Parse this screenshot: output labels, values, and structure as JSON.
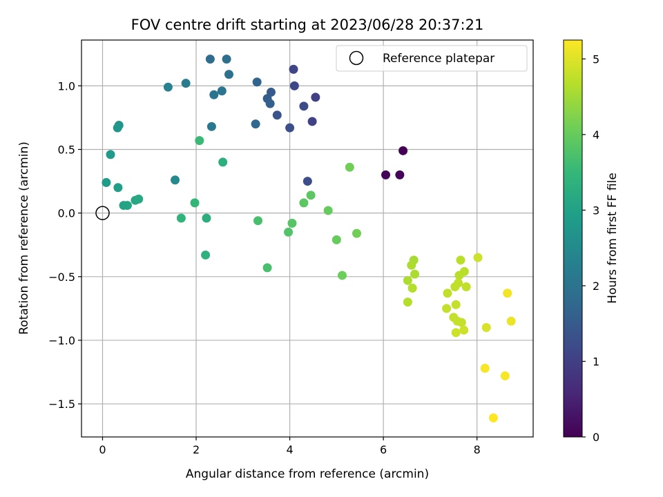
{
  "chart_data": {
    "type": "scatter",
    "title": "FOV centre drift starting at 2023/06/28 20:37:21",
    "xlabel": "Angular distance from reference (arcmin)",
    "ylabel": "Rotation from reference (arcmin)",
    "xlim": [
      -0.45,
      9.2
    ],
    "ylim": [
      -1.76,
      1.36
    ],
    "xticks": [
      0,
      2,
      4,
      6,
      8
    ],
    "xtick_labels": [
      "0",
      "2",
      "4",
      "6",
      "8"
    ],
    "yticks": [
      -1.5,
      -1.0,
      -0.5,
      0.0,
      0.5,
      1.0
    ],
    "ytick_labels": [
      "−1.5",
      "−1.0",
      "−0.5",
      "0.0",
      "0.5",
      "1.0"
    ],
    "grid": true,
    "legend": {
      "placement": "top-right",
      "entries": [
        {
          "label": "Reference platepar",
          "marker": "open-circle",
          "x": 0.0,
          "y": 0.0
        }
      ]
    },
    "colorbar": {
      "label": "Hours from first FF file",
      "colormap": "viridis",
      "range": [
        0,
        5.25
      ],
      "ticks": [
        0,
        1,
        2,
        3,
        4,
        5
      ],
      "tick_labels": [
        "0",
        "1",
        "2",
        "3",
        "4",
        "5"
      ]
    },
    "colormap_stops": [
      "#440154",
      "#482878",
      "#3e4989",
      "#31688e",
      "#26828e",
      "#1f9e89",
      "#35b779",
      "#6ece58",
      "#b5de2b",
      "#fde725"
    ],
    "points": [
      {
        "x": 6.42,
        "y": 0.49,
        "c": 0.02
      },
      {
        "x": 6.05,
        "y": 0.3,
        "c": 0.05
      },
      {
        "x": 6.35,
        "y": 0.3,
        "c": 0.08
      },
      {
        "x": 4.55,
        "y": 0.91,
        "c": 1.0
      },
      {
        "x": 4.48,
        "y": 0.72,
        "c": 1.05
      },
      {
        "x": 4.08,
        "y": 1.13,
        "c": 1.1
      },
      {
        "x": 4.1,
        "y": 1.0,
        "c": 1.15
      },
      {
        "x": 4.3,
        "y": 0.84,
        "c": 1.2
      },
      {
        "x": 4.38,
        "y": 0.25,
        "c": 1.25
      },
      {
        "x": 4.0,
        "y": 0.67,
        "c": 1.3
      },
      {
        "x": 3.73,
        "y": 0.77,
        "c": 1.4
      },
      {
        "x": 3.6,
        "y": 0.95,
        "c": 1.5
      },
      {
        "x": 3.52,
        "y": 0.9,
        "c": 1.55
      },
      {
        "x": 3.58,
        "y": 0.86,
        "c": 1.6
      },
      {
        "x": 3.3,
        "y": 1.03,
        "c": 1.7
      },
      {
        "x": 3.27,
        "y": 0.7,
        "c": 1.75
      },
      {
        "x": 2.3,
        "y": 1.21,
        "c": 1.85
      },
      {
        "x": 2.65,
        "y": 1.21,
        "c": 1.9
      },
      {
        "x": 2.7,
        "y": 1.09,
        "c": 1.95
      },
      {
        "x": 2.55,
        "y": 0.96,
        "c": 2.05
      },
      {
        "x": 2.38,
        "y": 0.93,
        "c": 2.0
      },
      {
        "x": 2.33,
        "y": 0.68,
        "c": 2.1
      },
      {
        "x": 1.78,
        "y": 1.02,
        "c": 2.2
      },
      {
        "x": 1.4,
        "y": 0.99,
        "c": 2.3
      },
      {
        "x": 1.55,
        "y": 0.26,
        "c": 2.5
      },
      {
        "x": 0.35,
        "y": 0.69,
        "c": 2.7
      },
      {
        "x": 0.32,
        "y": 0.67,
        "c": 2.75
      },
      {
        "x": 0.17,
        "y": 0.46,
        "c": 2.85
      },
      {
        "x": 0.08,
        "y": 0.24,
        "c": 2.9
      },
      {
        "x": 0.33,
        "y": 0.2,
        "c": 2.95
      },
      {
        "x": 0.45,
        "y": 0.06,
        "c": 3.05
      },
      {
        "x": 0.53,
        "y": 0.06,
        "c": 3.05
      },
      {
        "x": 0.7,
        "y": 0.1,
        "c": 3.1
      },
      {
        "x": 0.77,
        "y": 0.11,
        "c": 3.15
      },
      {
        "x": 2.57,
        "y": 0.4,
        "c": 3.3
      },
      {
        "x": 2.22,
        "y": -0.04,
        "c": 3.3
      },
      {
        "x": 2.2,
        "y": -0.33,
        "c": 3.35
      },
      {
        "x": 1.68,
        "y": -0.04,
        "c": 3.4
      },
      {
        "x": 1.97,
        "y": 0.08,
        "c": 3.45
      },
      {
        "x": 2.07,
        "y": 0.57,
        "c": 3.55
      },
      {
        "x": 3.32,
        "y": -0.06,
        "c": 3.7
      },
      {
        "x": 3.52,
        "y": -0.43,
        "c": 3.7
      },
      {
        "x": 3.97,
        "y": -0.15,
        "c": 3.8
      },
      {
        "x": 4.05,
        "y": -0.08,
        "c": 3.85
      },
      {
        "x": 4.3,
        "y": 0.08,
        "c": 3.9
      },
      {
        "x": 4.45,
        "y": 0.14,
        "c": 3.9
      },
      {
        "x": 4.82,
        "y": 0.02,
        "c": 4.0
      },
      {
        "x": 5.0,
        "y": -0.21,
        "c": 4.0
      },
      {
        "x": 5.12,
        "y": -0.49,
        "c": 4.05
      },
      {
        "x": 5.28,
        "y": 0.36,
        "c": 4.1
      },
      {
        "x": 5.43,
        "y": -0.16,
        "c": 4.1
      },
      {
        "x": 6.65,
        "y": -0.37,
        "c": 4.55
      },
      {
        "x": 6.6,
        "y": -0.41,
        "c": 4.6
      },
      {
        "x": 6.67,
        "y": -0.48,
        "c": 4.6
      },
      {
        "x": 6.52,
        "y": -0.53,
        "c": 4.6
      },
      {
        "x": 6.62,
        "y": -0.59,
        "c": 4.65
      },
      {
        "x": 6.52,
        "y": -0.7,
        "c": 4.65
      },
      {
        "x": 7.65,
        "y": -0.37,
        "c": 4.7
      },
      {
        "x": 7.73,
        "y": -0.46,
        "c": 4.7
      },
      {
        "x": 7.62,
        "y": -0.49,
        "c": 4.7
      },
      {
        "x": 7.6,
        "y": -0.55,
        "c": 4.75
      },
      {
        "x": 7.53,
        "y": -0.58,
        "c": 4.75
      },
      {
        "x": 7.77,
        "y": -0.58,
        "c": 4.75
      },
      {
        "x": 7.37,
        "y": -0.63,
        "c": 4.75
      },
      {
        "x": 7.55,
        "y": -0.72,
        "c": 4.8
      },
      {
        "x": 7.35,
        "y": -0.75,
        "c": 4.8
      },
      {
        "x": 7.5,
        "y": -0.82,
        "c": 4.8
      },
      {
        "x": 7.58,
        "y": -0.85,
        "c": 4.8
      },
      {
        "x": 7.67,
        "y": -0.86,
        "c": 4.8
      },
      {
        "x": 7.72,
        "y": -0.92,
        "c": 4.85
      },
      {
        "x": 7.55,
        "y": -0.94,
        "c": 4.85
      },
      {
        "x": 8.02,
        "y": -0.35,
        "c": 4.85
      },
      {
        "x": 8.2,
        "y": -0.9,
        "c": 4.95
      },
      {
        "x": 8.73,
        "y": -0.85,
        "c": 5.1
      },
      {
        "x": 8.65,
        "y": -0.63,
        "c": 5.15
      },
      {
        "x": 8.17,
        "y": -1.22,
        "c": 5.2
      },
      {
        "x": 8.6,
        "y": -1.28,
        "c": 5.2
      },
      {
        "x": 8.35,
        "y": -1.61,
        "c": 5.25
      }
    ]
  }
}
